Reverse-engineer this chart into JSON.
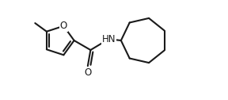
{
  "bg_color": "#ffffff",
  "line_color": "#1a1a1a",
  "text_color": "#1a1a1a",
  "lw": 1.5,
  "fs": 8.5,
  "figsize": [
    2.88,
    1.26
  ],
  "dpi": 100,
  "xlim": [
    -1,
    11
  ],
  "ylim": [
    -0.5,
    4.0
  ]
}
